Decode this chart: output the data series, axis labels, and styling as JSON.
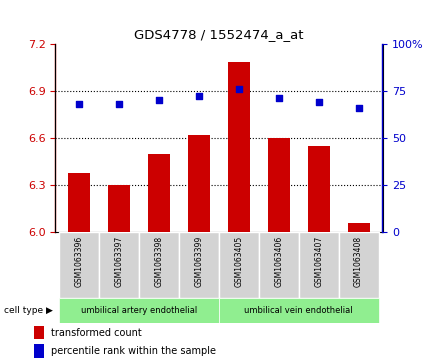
{
  "title": "GDS4778 / 1552474_a_at",
  "samples": [
    "GSM1063396",
    "GSM1063397",
    "GSM1063398",
    "GSM1063399",
    "GSM1063405",
    "GSM1063406",
    "GSM1063407",
    "GSM1063408"
  ],
  "transformed_counts": [
    6.38,
    6.3,
    6.5,
    6.62,
    7.08,
    6.6,
    6.55,
    6.06
  ],
  "percentile_ranks": [
    68,
    68,
    70,
    72,
    76,
    71,
    69,
    66
  ],
  "ylim_left": [
    6.0,
    7.2
  ],
  "ylim_right": [
    0,
    100
  ],
  "yticks_left": [
    6.0,
    6.3,
    6.6,
    6.9,
    7.2
  ],
  "yticks_right": [
    0,
    25,
    50,
    75,
    100
  ],
  "bar_color": "#cc0000",
  "dot_color": "#0000cc",
  "bar_width": 0.55,
  "group0_label": "umbilical artery endothelial",
  "group1_label": "umbilical vein endothelial",
  "group_color": "#90ee90",
  "sample_box_color": "#d3d3d3",
  "cell_type_label": "cell type",
  "legend_bar_label": "transformed count",
  "legend_dot_label": "percentile rank within the sample",
  "tick_color_left": "#cc0000",
  "tick_color_right": "#0000cc"
}
